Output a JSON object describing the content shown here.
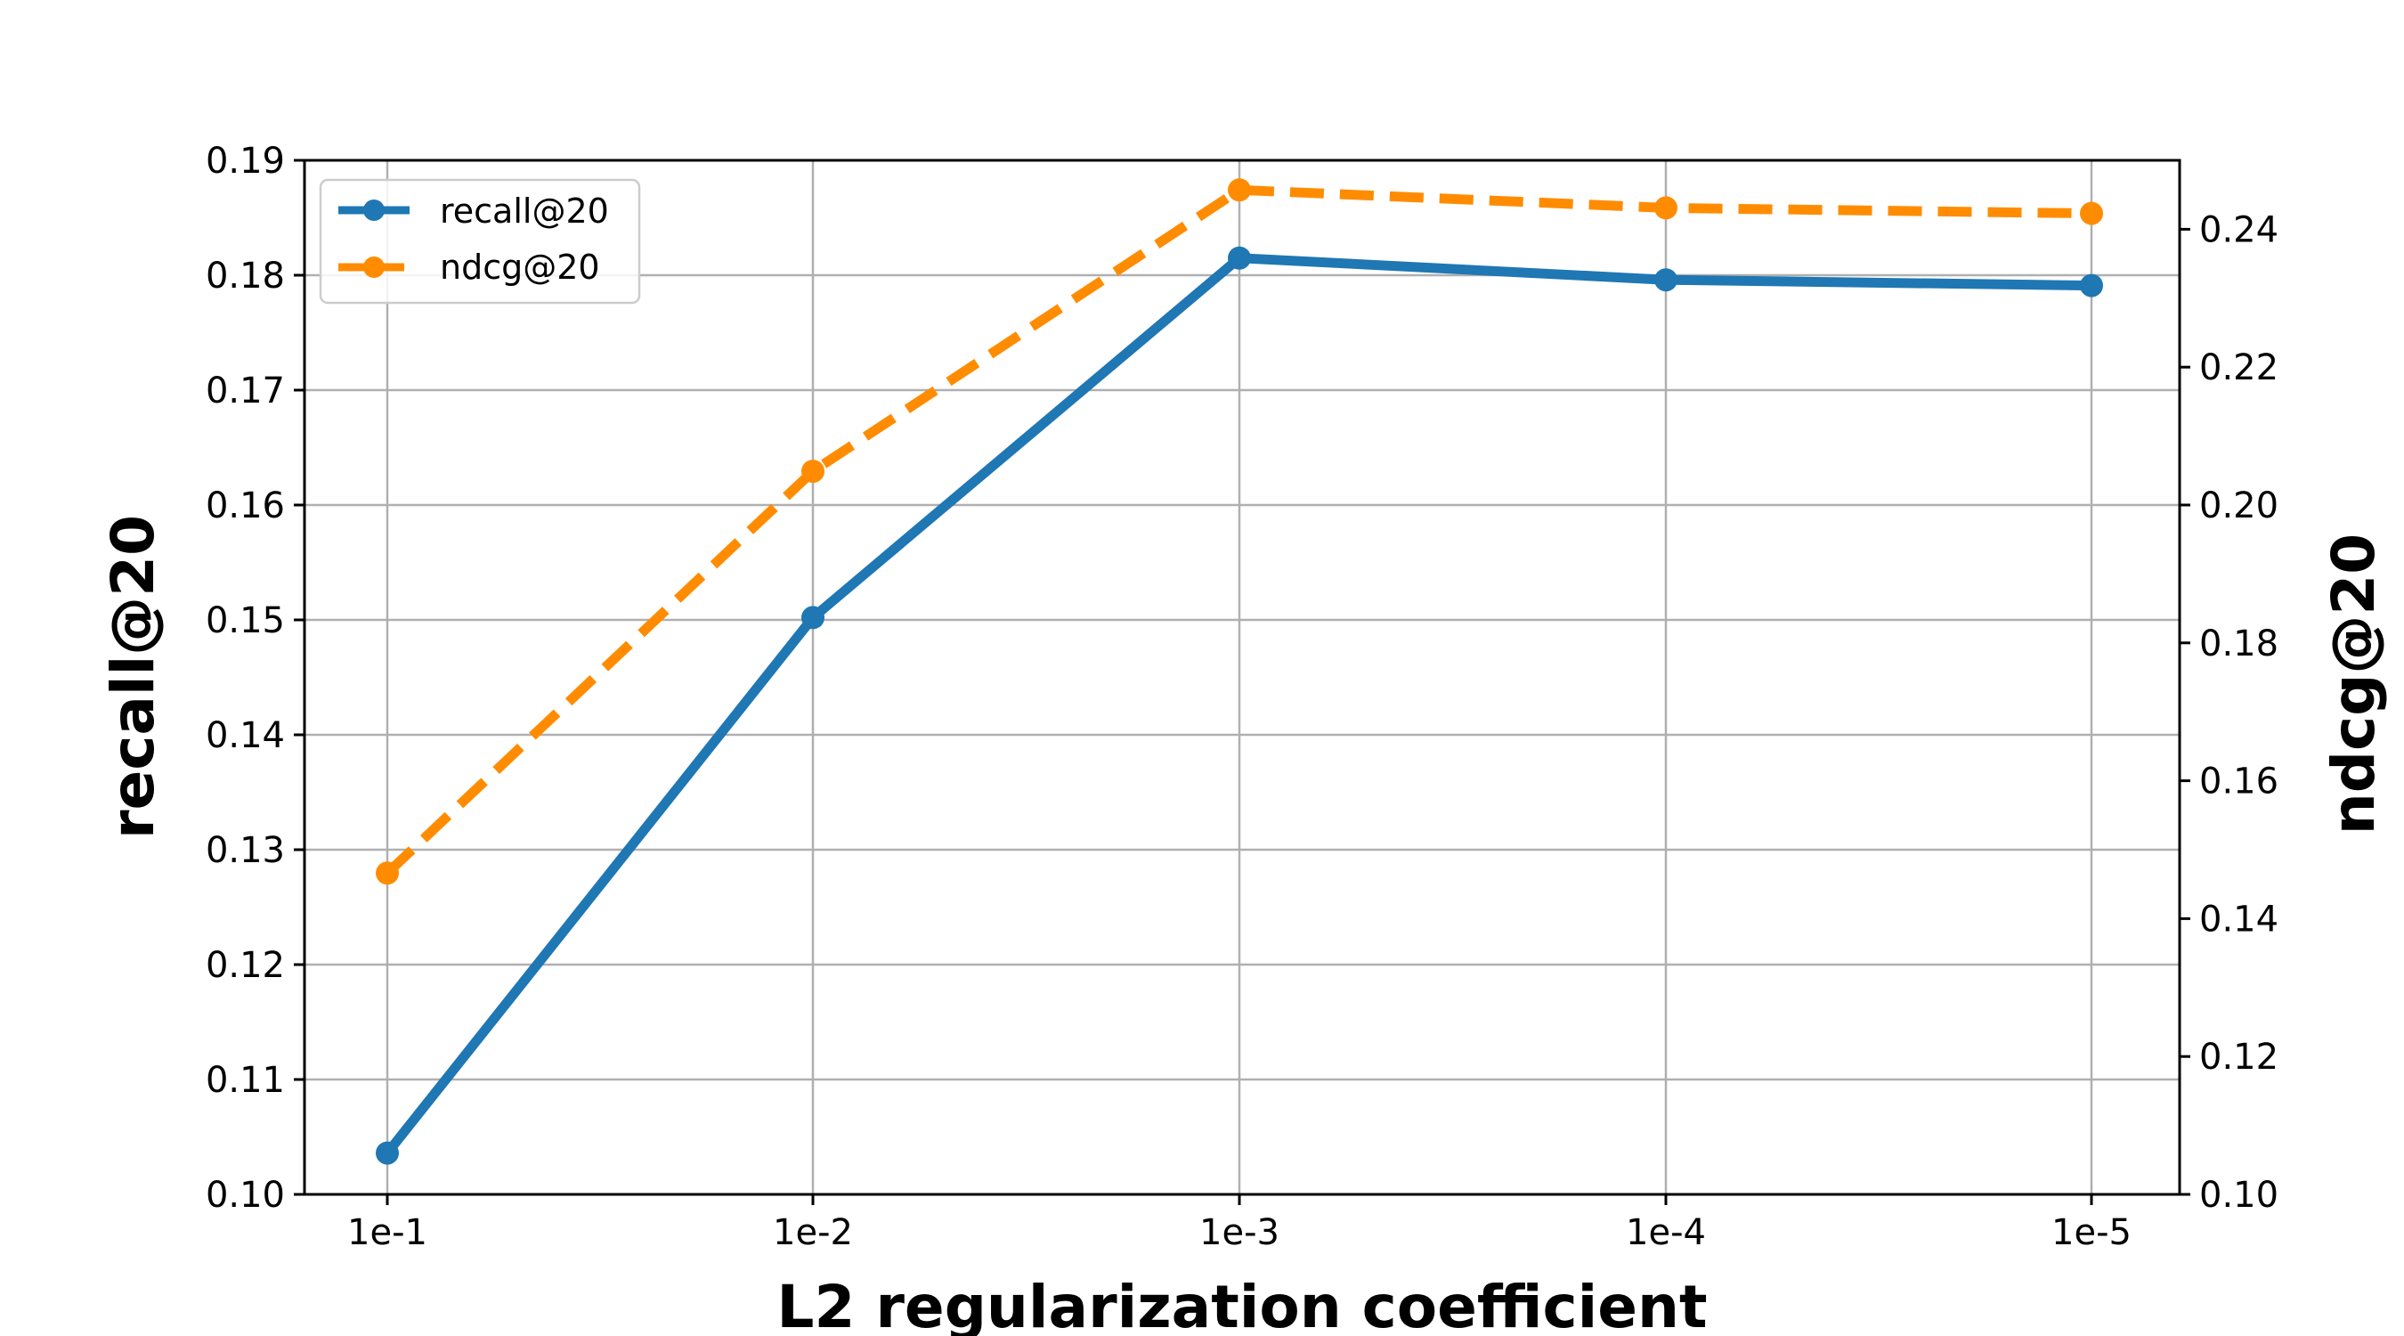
{
  "chart_data": {
    "type": "line",
    "categories": [
      "1e-1",
      "1e-2",
      "1e-3",
      "1e-4",
      "1e-5"
    ],
    "xlabel": "L2 regularization coefficient",
    "ylabel_left": "recall@20",
    "ylabel_right": "ndcg@20",
    "ylim_left": [
      0.1,
      0.19
    ],
    "yticks_left": [
      "0.10",
      "0.11",
      "0.12",
      "0.13",
      "0.14",
      "0.15",
      "0.16",
      "0.17",
      "0.18",
      "0.19"
    ],
    "ylim_right": [
      0.1,
      0.25
    ],
    "yticks_right": [
      "0.10",
      "0.12",
      "0.14",
      "0.16",
      "0.18",
      "0.20",
      "0.22",
      "0.24"
    ],
    "grid": true,
    "legend_position": "top-left",
    "series": [
      {
        "name": "recall@20",
        "axis": "left",
        "values": [
          0.1036,
          0.1502,
          0.1815,
          0.1796,
          0.1791
        ],
        "color": "#1f77b4",
        "style": "solid"
      },
      {
        "name": "ndcg@20",
        "axis": "right",
        "values": [
          0.1466,
          0.2049,
          0.2457,
          0.2431,
          0.2423
        ],
        "color": "#ff8c00",
        "style": "dashed"
      }
    ]
  }
}
